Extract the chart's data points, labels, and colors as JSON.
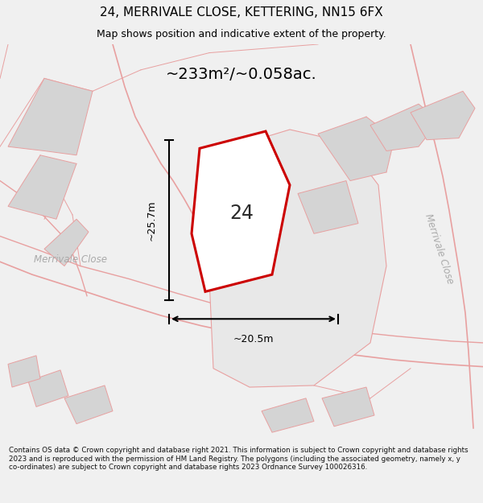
{
  "title": "24, MERRIVALE CLOSE, KETTERING, NN15 6FX",
  "subtitle": "Map shows position and indicative extent of the property.",
  "area_text": "~233m²/~0.058ac.",
  "width_label": "~20.5m",
  "height_label": "~25.7m",
  "number_label": "24",
  "road_label_left": "Merrivale Close",
  "road_label_right": "Merrivale Close",
  "footer_text": "Contains OS data © Crown copyright and database right 2021. This information is subject to Crown copyright and database rights 2023 and is reproduced with the permission of HM Land Registry. The polygons (including the associated geometry, namely x, y co-ordinates) are subject to Crown copyright and database rights 2023 Ordnance Survey 100026316.",
  "bg_color": "#f0f0f0",
  "map_bg": "#ffffff",
  "title_color": "#000000",
  "red_color": "#cc0000",
  "light_red": "#e8a0a0",
  "gray_fill": "#d4d4d4",
  "dark_gray": "#b8b8b8"
}
